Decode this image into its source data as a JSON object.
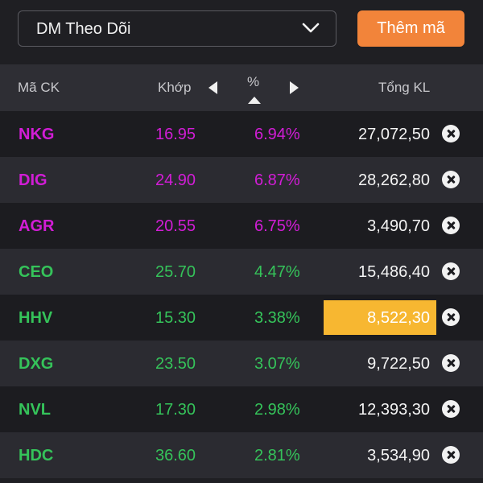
{
  "watchlist": {
    "selected": "DM Theo Dõi"
  },
  "add_button": {
    "label": "Thêm mã"
  },
  "columns": {
    "code": "Mã CK",
    "match": "Khớp",
    "percent": "%",
    "volume": "Tổng KL"
  },
  "colors": {
    "purple": "#d21dd6",
    "green": "#35c35a",
    "highlight": "#f7b731",
    "button": "#f2843a"
  },
  "rows": [
    {
      "code": "NKG",
      "match": "16.95",
      "percent": "6.94%",
      "volume": "27,072,50",
      "color": "purple",
      "highlight": false
    },
    {
      "code": "DIG",
      "match": "24.90",
      "percent": "6.87%",
      "volume": "28,262,80",
      "color": "purple",
      "highlight": false
    },
    {
      "code": "AGR",
      "match": "20.55",
      "percent": "6.75%",
      "volume": "3,490,70",
      "color": "purple",
      "highlight": false
    },
    {
      "code": "CEO",
      "match": "25.70",
      "percent": "4.47%",
      "volume": "15,486,40",
      "color": "green",
      "highlight": false
    },
    {
      "code": "HHV",
      "match": "15.30",
      "percent": "3.38%",
      "volume": "8,522,30",
      "color": "green",
      "highlight": true
    },
    {
      "code": "DXG",
      "match": "23.50",
      "percent": "3.07%",
      "volume": "9,722,50",
      "color": "green",
      "highlight": false
    },
    {
      "code": "NVL",
      "match": "17.30",
      "percent": "2.98%",
      "volume": "12,393,30",
      "color": "green",
      "highlight": false
    },
    {
      "code": "HDC",
      "match": "36.60",
      "percent": "2.81%",
      "volume": "3,534,90",
      "color": "green",
      "highlight": false
    }
  ]
}
